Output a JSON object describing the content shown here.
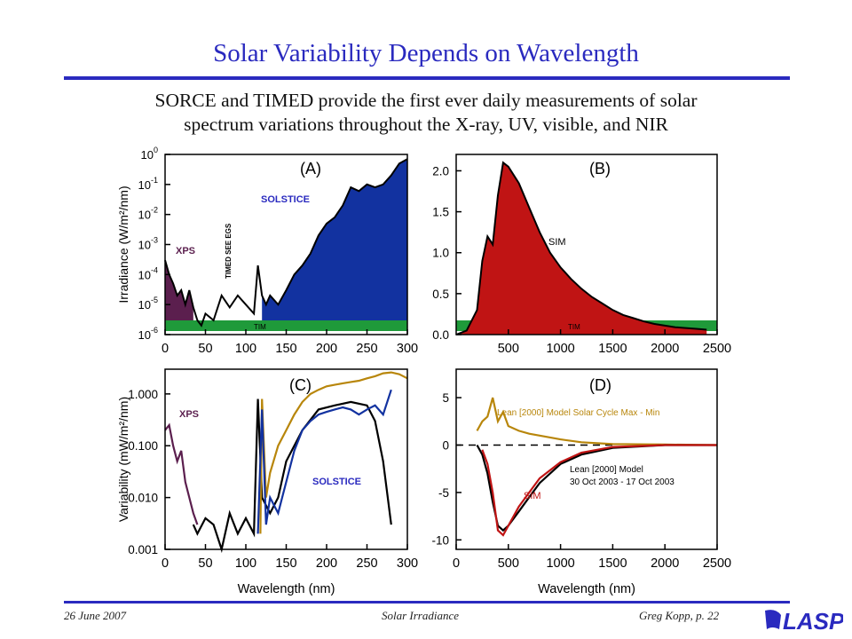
{
  "slide": {
    "title": "Solar Variability Depends on Wavelength",
    "subtitle_line1": "SORCE and TIMED provide the first ever daily measurements of solar",
    "subtitle_line2": "spectrum variations throughout the X-ray, UV, visible, and NIR"
  },
  "footer": {
    "date": "26 June 2007",
    "center": "Solar Irradiance",
    "right": "Greg Kopp, p. 22",
    "logo_text": "LASP",
    "accent_color": "#2a2abf"
  },
  "chart_data": [
    {
      "type": "area",
      "panel_label": "(A)",
      "ylabel": "Irradiance (W/m²/nm)",
      "xlabel": "",
      "xlim": [
        0,
        300
      ],
      "ylim": [
        1e-06,
        1
      ],
      "yscale": "log",
      "x_ticks": [
        "0",
        "50",
        "100",
        "150",
        "200",
        "250",
        "300"
      ],
      "y_ticks": [
        "10-6",
        "10-5",
        "10-4",
        "10-3",
        "10-2",
        "10-1",
        "100"
      ],
      "annotations": [
        "XPS",
        "TIMED SEE EGS",
        "SOLSTICE",
        "TIM"
      ],
      "colors": {
        "XPS": "#5b1f4e",
        "SOLSTICE": "#1232a0",
        "TIM": "#1f9a3a",
        "line": "#000000"
      },
      "series": [
        {
          "name": "spectrum",
          "x": [
            0,
            5,
            10,
            15,
            20,
            25,
            30,
            35,
            40,
            45,
            50,
            60,
            70,
            80,
            90,
            100,
            110,
            115,
            120,
            125,
            130,
            140,
            150,
            160,
            170,
            180,
            190,
            200,
            210,
            220,
            230,
            240,
            250,
            260,
            270,
            280,
            290,
            300
          ],
          "y": [
            0.0003,
            0.0001,
            5e-05,
            2e-05,
            3e-05,
            1e-05,
            3e-05,
            8e-06,
            3e-06,
            2e-06,
            5e-06,
            3e-06,
            2e-05,
            8e-06,
            2e-05,
            1e-05,
            5e-06,
            0.0002,
            2e-05,
            1e-05,
            2e-05,
            1e-05,
            3e-05,
            0.0001,
            0.0002,
            0.0005,
            0.002,
            0.005,
            0.008,
            0.02,
            0.08,
            0.06,
            0.1,
            0.08,
            0.1,
            0.2,
            0.5,
            0.7
          ]
        }
      ]
    },
    {
      "type": "area",
      "panel_label": "(B)",
      "xlabel": "",
      "ylabel": "",
      "xlim": [
        0,
        2500
      ],
      "ylim": [
        0,
        2.2
      ],
      "x_ticks": [
        "500",
        "1000",
        "1500",
        "2000",
        "2500"
      ],
      "y_ticks": [
        "0.0",
        "0.5",
        "1.0",
        "1.5",
        "2.0"
      ],
      "annotations": [
        "SIM",
        "TIM"
      ],
      "colors": {
        "SIM": "#c01414",
        "TIM": "#1f9a3a",
        "line": "#000000"
      },
      "series": [
        {
          "name": "spectrum",
          "x": [
            0,
            100,
            200,
            250,
            300,
            350,
            400,
            450,
            500,
            600,
            700,
            800,
            900,
            1000,
            1100,
            1200,
            1300,
            1400,
            1500,
            1600,
            1700,
            1800,
            1900,
            2000,
            2100,
            2200,
            2300,
            2400
          ],
          "y": [
            0,
            0.05,
            0.3,
            0.9,
            1.2,
            1.1,
            1.7,
            2.1,
            2.05,
            1.85,
            1.55,
            1.25,
            1.0,
            0.82,
            0.68,
            0.56,
            0.46,
            0.38,
            0.3,
            0.24,
            0.2,
            0.16,
            0.13,
            0.11,
            0.09,
            0.08,
            0.07,
            0.06
          ]
        }
      ]
    },
    {
      "type": "line",
      "panel_label": "(C)",
      "xlabel": "Wavelength (nm)",
      "ylabel": "Variability (mW/m²/nm)",
      "xlim": [
        0,
        300
      ],
      "ylim": [
        0.001,
        3
      ],
      "yscale": "log",
      "x_ticks": [
        "0",
        "50",
        "100",
        "150",
        "200",
        "250",
        "300"
      ],
      "y_ticks": [
        "0.001",
        "0.010",
        "0.100",
        "1.000"
      ],
      "annotations": [
        "XPS",
        "SOLSTICE"
      ],
      "series": [
        {
          "name": "XPS",
          "color": "#5b1f4e",
          "x": [
            0,
            5,
            10,
            15,
            20,
            25,
            30,
            35,
            40
          ],
          "y": [
            0.2,
            0.25,
            0.1,
            0.05,
            0.08,
            0.02,
            0.01,
            0.005,
            0.003
          ]
        },
        {
          "name": "black",
          "color": "#000000",
          "x": [
            35,
            40,
            50,
            60,
            70,
            80,
            90,
            100,
            110,
            115,
            120,
            130,
            140,
            150,
            170,
            190,
            210,
            230,
            250,
            260,
            270,
            280
          ],
          "y": [
            0.003,
            0.002,
            0.004,
            0.003,
            0.001,
            0.005,
            0.002,
            0.004,
            0.002,
            0.8,
            0.01,
            0.005,
            0.01,
            0.05,
            0.2,
            0.5,
            0.6,
            0.7,
            0.6,
            0.3,
            0.05,
            0.003
          ]
        },
        {
          "name": "gold",
          "color": "#b8860b",
          "x": [
            118,
            120,
            125,
            130,
            140,
            150,
            160,
            170,
            180,
            190,
            200,
            210,
            220,
            230,
            240,
            250,
            260,
            270,
            280,
            290,
            300
          ],
          "y": [
            0.002,
            0.8,
            0.01,
            0.03,
            0.1,
            0.2,
            0.4,
            0.7,
            1.0,
            1.2,
            1.4,
            1.5,
            1.6,
            1.7,
            1.8,
            2.0,
            2.2,
            2.5,
            2.6,
            2.4,
            2.0
          ]
        },
        {
          "name": "SOLSTICE",
          "color": "#1232a0",
          "x": [
            115,
            120,
            125,
            130,
            140,
            150,
            160,
            170,
            180,
            190,
            200,
            210,
            220,
            230,
            240,
            250,
            260,
            270,
            280
          ],
          "y": [
            0.002,
            0.5,
            0.003,
            0.01,
            0.005,
            0.02,
            0.08,
            0.2,
            0.3,
            0.4,
            0.45,
            0.5,
            0.55,
            0.5,
            0.4,
            0.5,
            0.6,
            0.4,
            1.2
          ]
        }
      ]
    },
    {
      "type": "line",
      "panel_label": "(D)",
      "xlabel": "Wavelength (nm)",
      "ylabel": "",
      "xlim": [
        0,
        2500
      ],
      "ylim": [
        -11,
        8
      ],
      "x_ticks": [
        "0",
        "500",
        "1000",
        "1500",
        "2000",
        "2500"
      ],
      "y_ticks": [
        "-10",
        "-5",
        "0",
        "5"
      ],
      "annotations": [
        "Lean [2000] Model Solar Cycle Max - Min",
        "Lean [2000] Model",
        "30 Oct 2003 - 17 Oct 2003",
        "SIM"
      ],
      "series": [
        {
          "name": "Lean [2000] Model Solar Cycle Max - Min",
          "color": "#b8860b",
          "x": [
            200,
            250,
            300,
            350,
            400,
            450,
            500,
            600,
            700,
            800,
            1000,
            1200,
            1500,
            2000,
            2500
          ],
          "y": [
            1.5,
            2.5,
            3.0,
            5.0,
            2.5,
            3.5,
            2.0,
            1.5,
            1.2,
            1.0,
            0.6,
            0.3,
            0.1,
            0.05,
            0.0
          ]
        },
        {
          "name": "Lean [2000] Model",
          "color": "#000000",
          "x": [
            200,
            250,
            300,
            350,
            400,
            450,
            500,
            600,
            700,
            800,
            1000,
            1200,
            1500,
            2000,
            2500
          ],
          "y": [
            0,
            -1.0,
            -3.0,
            -6.0,
            -8.5,
            -9.0,
            -8.5,
            -7.0,
            -5.5,
            -4.0,
            -2.0,
            -1.0,
            -0.3,
            0,
            0
          ]
        },
        {
          "name": "SIM",
          "color": "#c01414",
          "x": [
            250,
            300,
            350,
            400,
            450,
            500,
            600,
            700,
            800,
            1000,
            1200,
            1500,
            2000,
            2500
          ],
          "y": [
            -0.5,
            -2.0,
            -5.0,
            -9.0,
            -9.5,
            -8.5,
            -6.5,
            -5.0,
            -3.5,
            -1.8,
            -0.8,
            -0.2,
            0,
            0
          ]
        }
      ]
    }
  ]
}
